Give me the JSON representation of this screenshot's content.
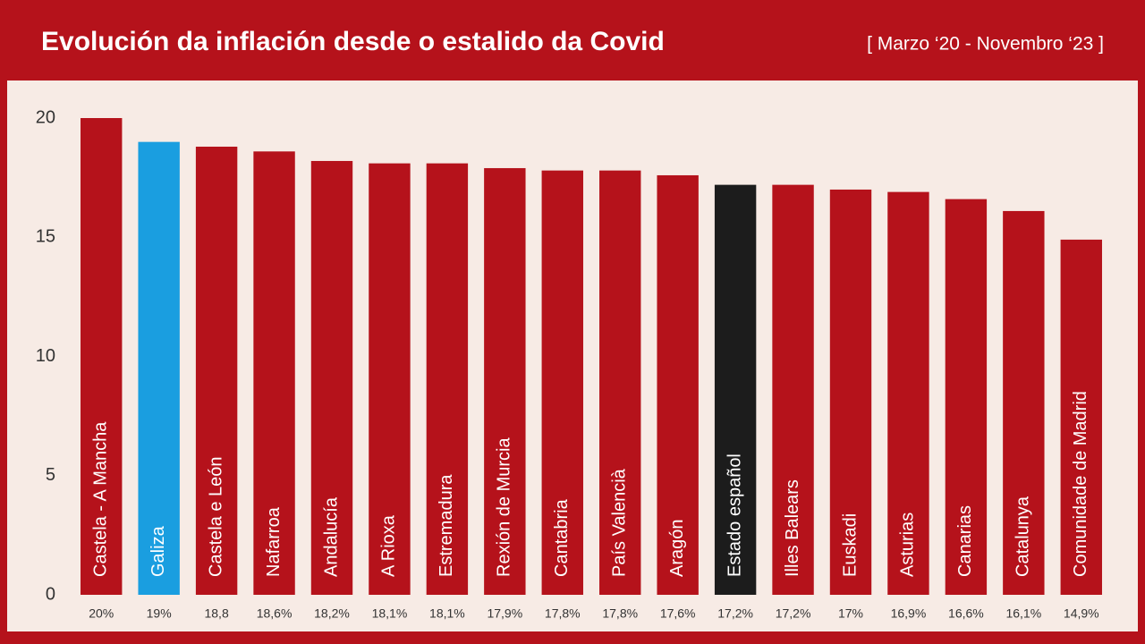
{
  "chart_data": {
    "type": "bar",
    "title": "Evolución da inflación desde o estalido da Covid",
    "subtitle": "[ Marzo ‘20 - Novembro ‘23 ]",
    "categories": [
      "Castela - A Mancha",
      "Galiza",
      "Castela e León",
      "Nafarroa",
      "Andalucía",
      "A Rioxa",
      "Estremadura",
      "Rexión de Murcia",
      "Cantabria",
      "País Valencià",
      "Aragón",
      "Estado español",
      "Illes Balears",
      "Euskadi",
      "Asturias",
      "Canarias",
      "Catalunya",
      "Comunidade de Madrid"
    ],
    "values": [
      20,
      19,
      18.8,
      18.6,
      18.2,
      18.1,
      18.1,
      17.9,
      17.8,
      17.8,
      17.6,
      17.2,
      17.2,
      17,
      16.9,
      16.6,
      16.1,
      14.9
    ],
    "value_labels": [
      "20%",
      "19%",
      "18,8",
      "18,6%",
      "18,2%",
      "18,1%",
      "18,1%",
      "17,9%",
      "17,8%",
      "17,8%",
      "17,6%",
      "17,2%",
      "17,2%",
      "17%",
      "16,9%",
      "16,6%",
      "16,1%",
      "14,9%"
    ],
    "colors": [
      "#b5121b",
      "#1a9ee0",
      "#b5121b",
      "#b5121b",
      "#b5121b",
      "#b5121b",
      "#b5121b",
      "#b5121b",
      "#b5121b",
      "#b5121b",
      "#b5121b",
      "#1c1c1c",
      "#b5121b",
      "#b5121b",
      "#b5121b",
      "#b5121b",
      "#b5121b",
      "#b5121b"
    ],
    "ylim": [
      0,
      20
    ],
    "yticks": [
      0,
      5,
      10,
      15,
      20
    ],
    "grid": false
  }
}
